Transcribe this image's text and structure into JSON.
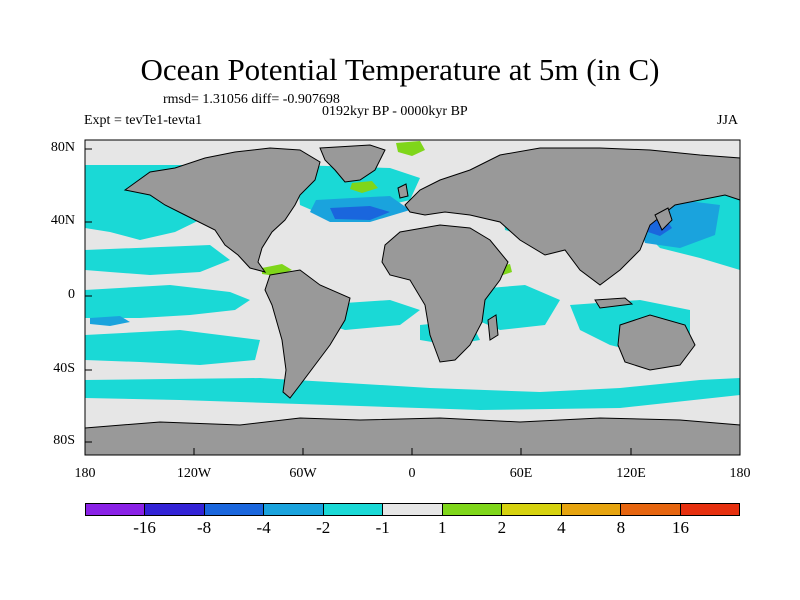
{
  "title": "Ocean Potential Temperature at 5m (in C)",
  "stats": "rmsd= 1.31056 diff= -0.907698",
  "period": "0192kyr BP - 0000kyr BP",
  "experiment": "Expt = tevTe1-tevta1",
  "season": "JJA",
  "map": {
    "land_color": "#999999",
    "ocean_background_color": "#e6e6e6",
    "lat_labels": [
      "80N",
      "40N",
      "0",
      "40S",
      "80S"
    ],
    "lon_labels": [
      "180",
      "120W",
      "60W",
      "0",
      "60E",
      "120E",
      "180"
    ]
  },
  "colorbar": {
    "colors": [
      "#8a22e6",
      "#3323d6",
      "#1a66dd",
      "#1aa3dd",
      "#1ad9d6",
      "#e6e6e6",
      "#7fd61a",
      "#d6d20f",
      "#e6a40f",
      "#e6650f",
      "#e6300f"
    ],
    "labels": [
      "-16",
      "-8",
      "-4",
      "-2",
      "-1",
      "1",
      "2",
      "4",
      "8",
      "16"
    ]
  }
}
